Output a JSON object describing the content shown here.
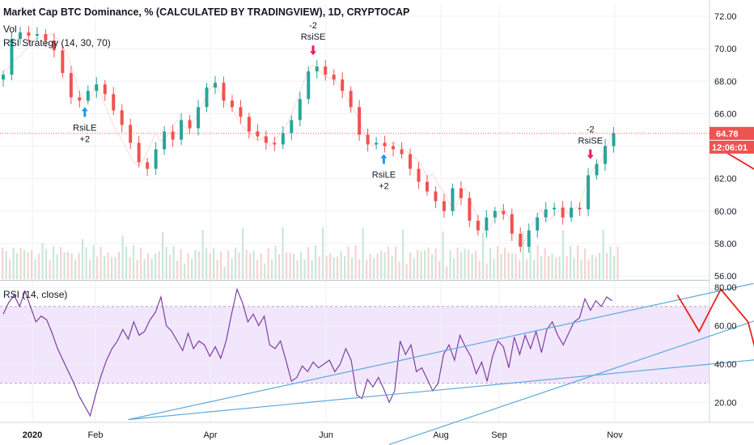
{
  "chart_data": {
    "type": "candlestick",
    "title": "Market Cap BTC Dominance, % (CALCULATED BY TRADINGVIEW), 1D, CRYPTOCAP",
    "volume_label": "Vol",
    "strategy_label": "RSI Strategy (14, 30, 70)",
    "price_axis": {
      "ticks": [
        "72.00",
        "70.00",
        "68.00",
        "66.00",
        "64.00",
        "62.00",
        "60.00",
        "58.00",
        "56.00"
      ],
      "ylim": [
        55.8,
        72.8
      ]
    },
    "last_price": "64.78",
    "countdown": "12:06:01",
    "rsi_label": "RSI (14, close)",
    "rsi_axis": {
      "ticks": [
        "80.00",
        "60.00",
        "40.00",
        "20.00"
      ],
      "band": [
        30,
        70
      ],
      "ylim": [
        10,
        83
      ]
    },
    "x_axis": {
      "labels": [
        "2020",
        "Feb",
        "Apr",
        "Jun",
        "Aug",
        "Sep",
        "Nov"
      ]
    },
    "close_series": [
      [
        0,
        68.6
      ],
      [
        1,
        68.8
      ],
      [
        2,
        69.3
      ],
      [
        3,
        69.5
      ],
      [
        4,
        69.9
      ],
      [
        5,
        70.3
      ],
      [
        6,
        70.6
      ],
      [
        7,
        70.7
      ],
      [
        8,
        70.8
      ],
      [
        9,
        70.9
      ],
      [
        10,
        70.6
      ],
      [
        11,
        70.1
      ],
      [
        12,
        69.5
      ],
      [
        13,
        68.5
      ],
      [
        14,
        67.3
      ],
      [
        15,
        66.7
      ],
      [
        16,
        66.8
      ],
      [
        17,
        67.8
      ],
      [
        18,
        67.1
      ],
      [
        19,
        66.3
      ],
      [
        20,
        65.5
      ],
      [
        21,
        64.8
      ],
      [
        22,
        64.3
      ],
      [
        23,
        63.6
      ],
      [
        24,
        63.0
      ],
      [
        25,
        62.8
      ],
      [
        26,
        63.3
      ],
      [
        27,
        64.0
      ],
      [
        28,
        64.8
      ],
      [
        29,
        64.3
      ],
      [
        30,
        64.6
      ],
      [
        31,
        65.2
      ],
      [
        32,
        65.6
      ],
      [
        33,
        65.3
      ],
      [
        34,
        65.0
      ],
      [
        35,
        65.5
      ],
      [
        36,
        66.1
      ],
      [
        37,
        66.8
      ],
      [
        38,
        67.5
      ],
      [
        39,
        67.9
      ],
      [
        40,
        67.2
      ],
      [
        41,
        66.6
      ],
      [
        42,
        66.3
      ],
      [
        43,
        65.8
      ],
      [
        44,
        65.2
      ],
      [
        45,
        64.9
      ],
      [
        46,
        64.5
      ],
      [
        47,
        64.3
      ],
      [
        48,
        64.6
      ],
      [
        49,
        64.0
      ],
      [
        50,
        64.4
      ],
      [
        51,
        64.8
      ],
      [
        52,
        65.2
      ],
      [
        53,
        65.9
      ],
      [
        54,
        66.8
      ],
      [
        55,
        67.7
      ],
      [
        56,
        68.6
      ],
      [
        57,
        69.0
      ],
      [
        58,
        68.7
      ],
      [
        59,
        68.3
      ],
      [
        60,
        68.2
      ],
      [
        61,
        68.1
      ],
      [
        62,
        67.6
      ],
      [
        63,
        67.1
      ],
      [
        64,
        66.6
      ],
      [
        65,
        65.9
      ],
      [
        66,
        65.1
      ],
      [
        67,
        64.4
      ],
      [
        68,
        64.0
      ],
      [
        69,
        64.2
      ],
      [
        70,
        64.0
      ],
      [
        71,
        64.1
      ],
      [
        72,
        64.2
      ],
      [
        73,
        64.0
      ],
      [
        74,
        63.7
      ],
      [
        75,
        63.5
      ],
      [
        76,
        63.2
      ],
      [
        77,
        62.8
      ],
      [
        78,
        62.0
      ],
      [
        79,
        62.3
      ],
      [
        80,
        61.6
      ],
      [
        81,
        61.2
      ],
      [
        82,
        60.5
      ],
      [
        83,
        60.0
      ],
      [
        84,
        61.0
      ],
      [
        85,
        61.4
      ],
      [
        86,
        60.6
      ],
      [
        87,
        59.8
      ],
      [
        88,
        59.0
      ],
      [
        89,
        58.5
      ],
      [
        90,
        59.4
      ],
      [
        91,
        59.8
      ],
      [
        92,
        60.2
      ],
      [
        93,
        59.6
      ],
      [
        94,
        58.7
      ],
      [
        95,
        57.8
      ],
      [
        96,
        58.2
      ],
      [
        97,
        59.0
      ],
      [
        98,
        59.6
      ],
      [
        99,
        60.1
      ],
      [
        100,
        59.4
      ],
      [
        101,
        59.6
      ],
      [
        102,
        60.0
      ],
      [
        103,
        60.3
      ],
      [
        104,
        59.8
      ],
      [
        105,
        60.1
      ],
      [
        106,
        60.4
      ],
      [
        107,
        61.4
      ],
      [
        108,
        62.3
      ],
      [
        109,
        62.8
      ],
      [
        110,
        63.1
      ],
      [
        111,
        63.9
      ],
      [
        112,
        64.78
      ]
    ],
    "candle_closes": [
      68.4,
      70.6,
      71.0,
      70.8,
      70.9,
      70.5,
      69.9,
      68.5,
      67.0,
      66.8,
      67.4,
      67.8,
      67.2,
      66.2,
      65.3,
      64.2,
      63.0,
      62.6,
      63.8,
      64.9,
      64.4,
      65.6,
      65.1,
      66.4,
      67.6,
      67.9,
      66.8,
      66.4,
      65.8,
      64.9,
      64.6,
      64.2,
      64.1,
      64.8,
      65.6,
      66.9,
      68.6,
      68.9,
      68.4,
      68.1,
      67.4,
      66.4,
      64.7,
      64.1,
      64.2,
      64.0,
      63.8,
      63.5,
      62.6,
      61.8,
      61.2,
      60.6,
      60.0,
      61.4,
      60.8,
      59.4,
      58.8,
      59.6,
      60.0,
      59.8,
      58.6,
      57.8,
      58.8,
      59.6,
      60.1,
      60.2,
      59.6,
      60.2,
      60.1,
      62.2,
      62.9,
      64.0,
      64.8
    ],
    "rsi_series": [
      [
        0,
        66
      ],
      [
        1,
        72
      ],
      [
        2,
        76
      ],
      [
        3,
        70
      ],
      [
        4,
        78
      ],
      [
        5,
        70
      ],
      [
        6,
        62
      ],
      [
        7,
        65
      ],
      [
        8,
        63
      ],
      [
        9,
        56
      ],
      [
        10,
        48
      ],
      [
        11,
        42
      ],
      [
        12,
        36
      ],
      [
        13,
        30
      ],
      [
        14,
        23
      ],
      [
        15,
        18
      ],
      [
        16,
        13
      ],
      [
        17,
        24
      ],
      [
        18,
        34
      ],
      [
        19,
        42
      ],
      [
        20,
        48
      ],
      [
        21,
        52
      ],
      [
        22,
        58
      ],
      [
        23,
        53
      ],
      [
        24,
        62
      ],
      [
        25,
        55
      ],
      [
        26,
        57
      ],
      [
        27,
        63
      ],
      [
        28,
        67
      ],
      [
        29,
        75
      ],
      [
        30,
        60
      ],
      [
        31,
        57
      ],
      [
        32,
        52
      ],
      [
        33,
        47
      ],
      [
        34,
        56
      ],
      [
        35,
        48
      ],
      [
        36,
        52
      ],
      [
        37,
        50
      ],
      [
        38,
        44
      ],
      [
        39,
        49
      ],
      [
        40,
        43
      ],
      [
        41,
        52
      ],
      [
        42,
        66
      ],
      [
        43,
        79
      ],
      [
        44,
        72
      ],
      [
        45,
        62
      ],
      [
        46,
        66
      ],
      [
        47,
        60
      ],
      [
        48,
        65
      ],
      [
        49,
        50
      ],
      [
        50,
        48
      ],
      [
        51,
        52
      ],
      [
        52,
        42
      ],
      [
        53,
        31
      ],
      [
        54,
        33
      ],
      [
        55,
        39
      ],
      [
        56,
        36
      ],
      [
        57,
        41
      ],
      [
        58,
        38
      ],
      [
        59,
        40
      ],
      [
        60,
        42
      ],
      [
        61,
        36
      ],
      [
        62,
        40
      ],
      [
        63,
        48
      ],
      [
        64,
        42
      ],
      [
        65,
        24
      ],
      [
        66,
        22
      ],
      [
        67,
        32
      ],
      [
        68,
        28
      ],
      [
        69,
        33
      ],
      [
        70,
        27
      ],
      [
        71,
        20
      ],
      [
        72,
        26
      ],
      [
        73,
        52
      ],
      [
        74,
        45
      ],
      [
        75,
        50
      ],
      [
        76,
        36
      ],
      [
        77,
        38
      ],
      [
        78,
        32
      ],
      [
        79,
        26
      ],
      [
        80,
        30
      ],
      [
        81,
        45
      ],
      [
        82,
        50
      ],
      [
        83,
        42
      ],
      [
        84,
        55
      ],
      [
        85,
        49
      ],
      [
        86,
        44
      ],
      [
        87,
        35
      ],
      [
        88,
        41
      ],
      [
        89,
        31
      ],
      [
        90,
        44
      ],
      [
        91,
        52
      ],
      [
        92,
        49
      ],
      [
        93,
        38
      ],
      [
        94,
        54
      ],
      [
        95,
        45
      ],
      [
        96,
        55
      ],
      [
        97,
        48
      ],
      [
        98,
        57
      ],
      [
        99,
        46
      ],
      [
        100,
        58
      ],
      [
        101,
        62
      ],
      [
        102,
        55
      ],
      [
        103,
        50
      ],
      [
        104,
        56
      ],
      [
        105,
        62
      ],
      [
        106,
        64
      ],
      [
        107,
        74
      ],
      [
        108,
        68
      ],
      [
        109,
        73
      ],
      [
        110,
        70
      ],
      [
        111,
        75
      ],
      [
        112,
        73
      ]
    ],
    "signals": [
      {
        "type": "long",
        "name": "RsiLE",
        "qty": "+2",
        "x": 15,
        "y": 66.6
      },
      {
        "type": "short",
        "name": "RsiSE",
        "qty": "-2",
        "x": 57,
        "y": 69.4
      },
      {
        "type": "long",
        "name": "RsiLE",
        "qty": "+2",
        "x": 70,
        "y": 63.7
      },
      {
        "type": "short",
        "name": "RsiSE",
        "qty": "-2",
        "x": 108,
        "y": 63.0
      }
    ],
    "rsi_trendlines": [
      {
        "from": [
          23,
          11
        ],
        "to": [
          138,
          82
        ]
      },
      {
        "from": [
          71,
          -2
        ],
        "to": [
          145,
          69
        ]
      },
      {
        "from": [
          23,
          11
        ],
        "to": [
          145,
          44
        ]
      }
    ],
    "red_projection_price": {
      "from": [
        132,
        63.8
      ],
      "to": [
        143,
        61.6
      ]
    },
    "red_projection_rsi": [
      [
        124,
        76
      ],
      [
        128,
        57
      ],
      [
        132,
        79
      ],
      [
        137,
        62
      ],
      [
        140,
        30
      ]
    ]
  }
}
